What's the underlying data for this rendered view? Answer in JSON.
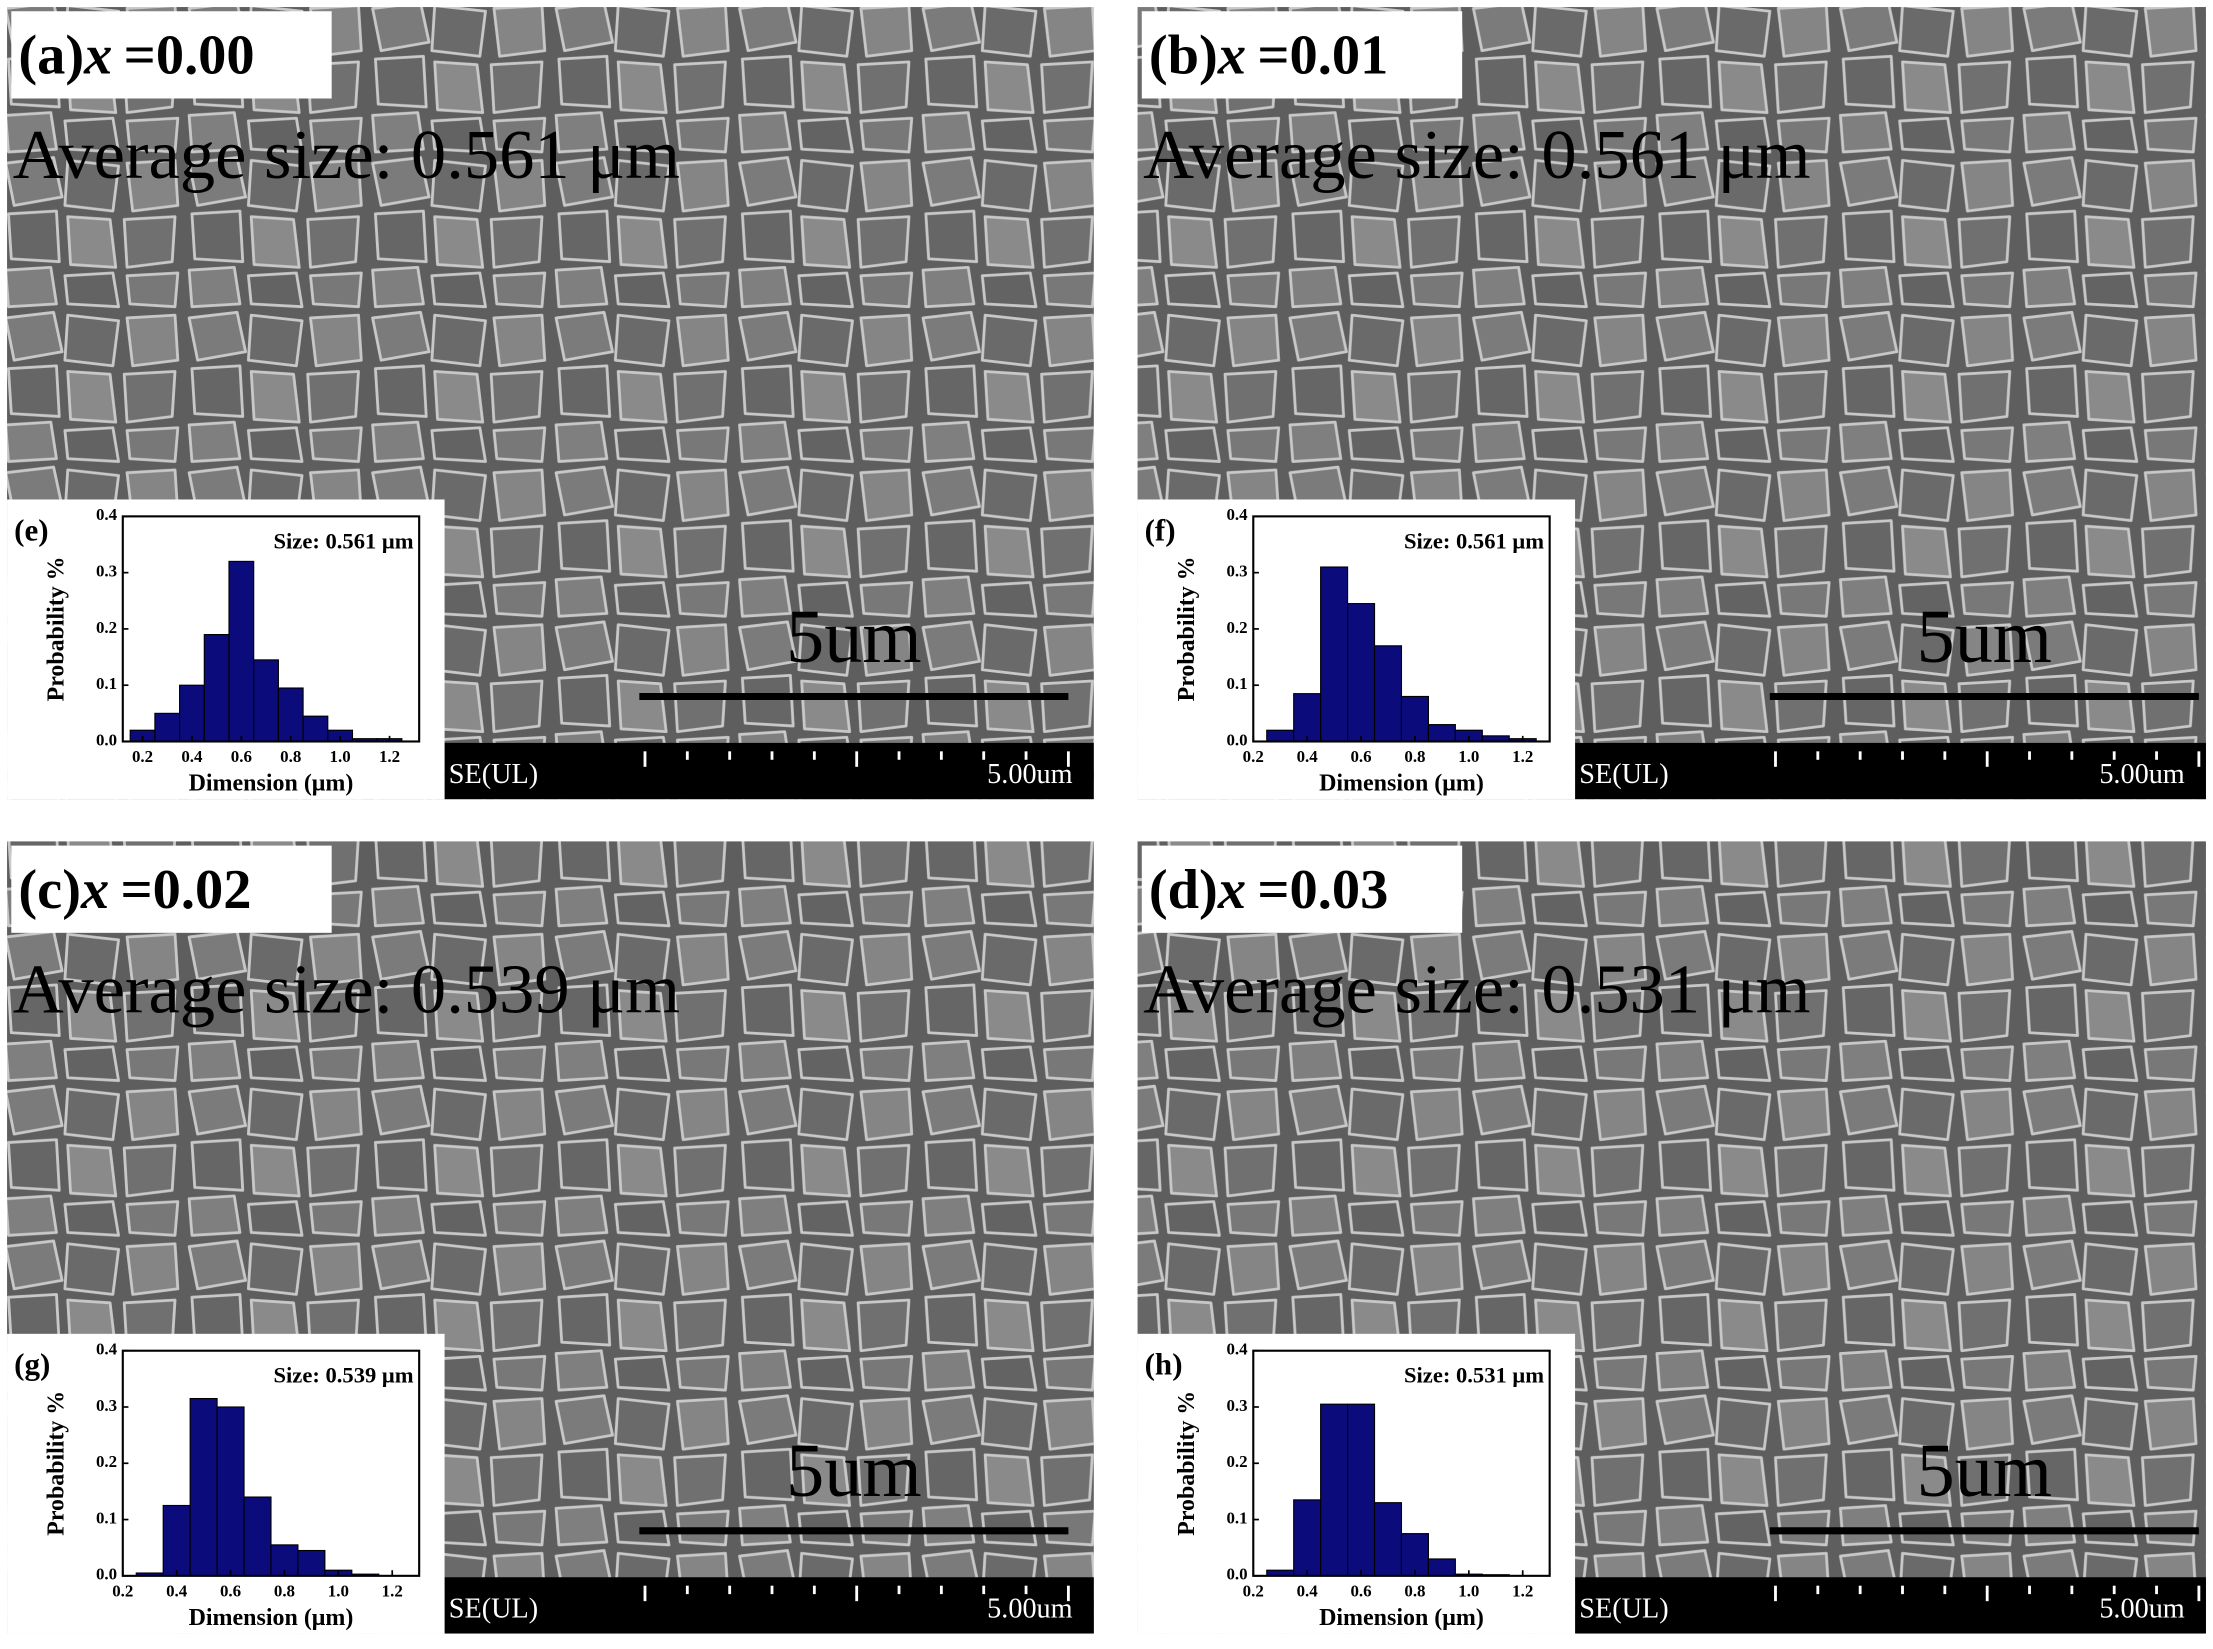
{
  "panels": [
    {
      "tag": "(a)",
      "variable": "x",
      "value": "=0.00",
      "average": "Average size: 0.561 μm",
      "scale_bar": "5um",
      "detector": "SE(UL)",
      "scale_label": "5.00um"
    },
    {
      "tag": "(b)",
      "variable": "x",
      "value": "=0.01",
      "average": "Average size: 0.561 μm",
      "scale_bar": "5um",
      "detector": "SE(UL)",
      "scale_label": "5.00um"
    },
    {
      "tag": "(c)",
      "variable": "x",
      "value": "=0.02",
      "average": "Average size: 0.539 μm",
      "scale_bar": "5um",
      "detector": "SE(UL)",
      "scale_label": "5.00um"
    },
    {
      "tag": "(d)",
      "variable": "x",
      "value": "=0.03",
      "average": "Average size: 0.531 μm",
      "scale_bar": "5um",
      "detector": "SE(UL)",
      "scale_label": "5.00um"
    }
  ],
  "chart_data": [
    {
      "type": "histogram",
      "label": "(e)",
      "annotation": "Size: 0.561 μm",
      "xlabel": "Dimension (μm)",
      "ylabel": "Probability %",
      "color": "#0b0b7c",
      "bins": [
        0.15,
        0.25,
        0.35,
        0.45,
        0.55,
        0.65,
        0.75,
        0.85,
        0.95,
        1.05,
        1.15,
        1.25
      ],
      "values": [
        0.02,
        0.05,
        0.1,
        0.19,
        0.32,
        0.145,
        0.095,
        0.045,
        0.02,
        0.005,
        0.005
      ],
      "xlim": [
        0.12,
        1.32
      ],
      "ylim": [
        0,
        0.4
      ],
      "xticks": [
        0.2,
        0.4,
        0.6,
        0.8,
        {
          "value": 1,
          "label": "1.0"
        },
        1.2
      ],
      "yticks": [
        {
          "value": 0,
          "label": "0.0"
        },
        0.1,
        0.2,
        0.3,
        0.4
      ]
    },
    {
      "type": "histogram",
      "label": "(f)",
      "annotation": "Size: 0.561 μm",
      "xlabel": "Dimension (μm)",
      "ylabel": "Probability %",
      "color": "#0b0b7c",
      "bins": [
        0.25,
        0.35,
        0.45,
        0.55,
        0.65,
        0.75,
        0.85,
        0.95,
        1.05,
        1.15,
        1.25
      ],
      "values": [
        0.02,
        0.085,
        0.31,
        0.245,
        0.17,
        0.08,
        0.03,
        0.02,
        0.01,
        0.005
      ],
      "xlim": [
        0.2,
        1.3
      ],
      "ylim": [
        0,
        0.4
      ],
      "xticks": [
        0.2,
        0.4,
        0.6,
        0.8,
        {
          "value": 1,
          "label": "1.0"
        },
        1.2
      ],
      "yticks": [
        {
          "value": 0,
          "label": "0.0"
        },
        0.1,
        0.2,
        0.3,
        0.4
      ]
    },
    {
      "type": "histogram",
      "label": "(g)",
      "annotation": "Size: 0.539 μm",
      "xlabel": "Dimension (μm)",
      "ylabel": "Probability %",
      "color": "#0b0b7c",
      "bins": [
        0.25,
        0.35,
        0.45,
        0.55,
        0.65,
        0.75,
        0.85,
        0.95,
        1.05,
        1.15
      ],
      "values": [
        0.005,
        0.125,
        0.315,
        0.3,
        0.14,
        0.055,
        0.045,
        0.01,
        0.003
      ],
      "xlim": [
        0.2,
        1.3
      ],
      "ylim": [
        0,
        0.4
      ],
      "xticks": [
        0.2,
        0.4,
        0.6,
        0.8,
        {
          "value": 1,
          "label": "1.0"
        },
        1.2
      ],
      "yticks": [
        {
          "value": 0,
          "label": "0.0"
        },
        0.1,
        0.2,
        0.3,
        0.4
      ]
    },
    {
      "type": "histogram",
      "label": "(h)",
      "annotation": "Size: 0.531 μm",
      "xlabel": "Dimension (μm)",
      "ylabel": "Probability %",
      "color": "#0b0b7c",
      "bins": [
        0.25,
        0.35,
        0.45,
        0.55,
        0.65,
        0.75,
        0.85,
        0.95,
        1.05,
        1.15
      ],
      "values": [
        0.01,
        0.135,
        0.305,
        0.305,
        0.13,
        0.075,
        0.03,
        0.003,
        0.002
      ],
      "xlim": [
        0.2,
        1.3
      ],
      "ylim": [
        0,
        0.4
      ],
      "xticks": [
        0.2,
        0.4,
        0.6,
        0.8,
        {
          "value": 1,
          "label": "1.0"
        },
        1.2
      ],
      "yticks": [
        {
          "value": 0,
          "label": "0.0"
        },
        0.1,
        0.2,
        0.3,
        0.4
      ]
    }
  ]
}
